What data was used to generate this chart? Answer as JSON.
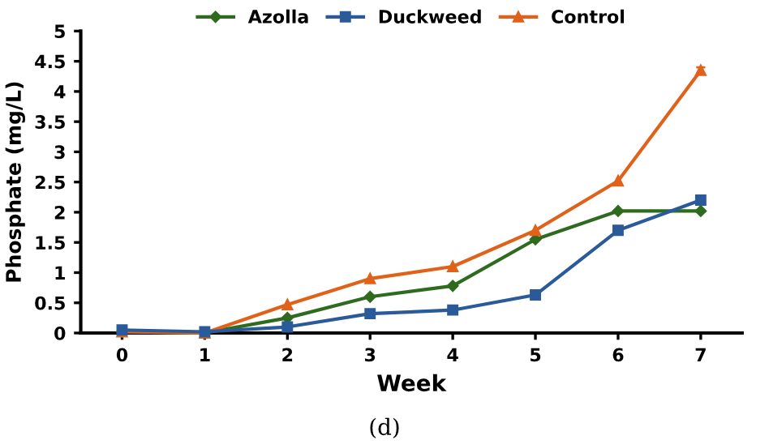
{
  "chart_data": {
    "type": "line",
    "xlabel": "Week",
    "ylabel": "Phosphate (mg/L)",
    "categories": [
      "0",
      "1",
      "2",
      "3",
      "4",
      "5",
      "6",
      "7"
    ],
    "series": [
      {
        "name": "Azolla",
        "color": "#2e6b1e",
        "marker": "diamond",
        "values": [
          0.02,
          0,
          0.25,
          0.6,
          0.78,
          1.55,
          2.02,
          2.02
        ]
      },
      {
        "name": "Duckweed",
        "color": "#2a5a9a",
        "marker": "square",
        "values": [
          0.05,
          0.02,
          0.1,
          0.32,
          0.38,
          0.63,
          1.7,
          2.2
        ]
      },
      {
        "name": "Control",
        "color": "#e0621a",
        "marker": "triangle",
        "values": [
          0.02,
          0,
          0.47,
          0.9,
          1.1,
          1.7,
          2.52,
          4.35
        ],
        "errors": [
          null,
          null,
          null,
          null,
          null,
          null,
          null,
          0.05
        ]
      }
    ],
    "ylim": [
      0,
      5
    ],
    "yticks": [
      0,
      0.5,
      1,
      1.5,
      2,
      2.5,
      3,
      3.5,
      4,
      4.5,
      5
    ],
    "grid": false,
    "legend": "top",
    "line_style": "solid",
    "annotations": [
      "(d)"
    ]
  }
}
